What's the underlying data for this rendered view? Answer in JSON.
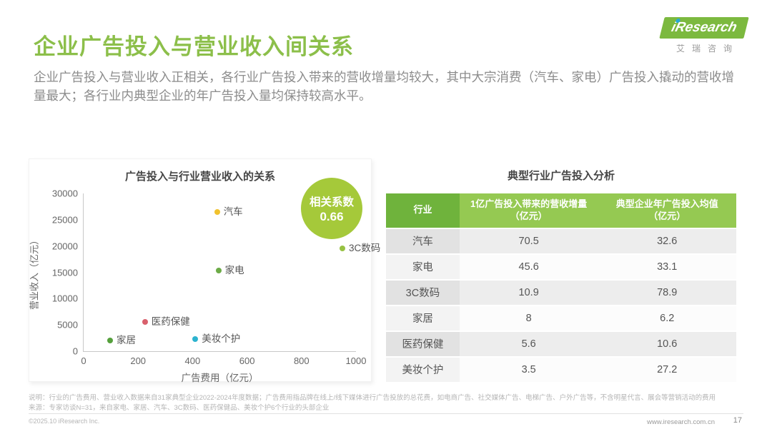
{
  "page": {
    "title": "企业广告投入与营业收入间关系",
    "subtitle": "企业广告投入与营业收入正相关，各行业广告投入带来的营收增量均较大，其中大宗消费（汽车、家电）广告投入撬动的营收增量最大；各行业内典型企业的年广告投入量均保持较高水平。",
    "note_line1": "说明：行业的广告费用、营业收入数据来自31家典型企业2022-2024年度数据；广告费用指品牌在线上/线下媒体进行广告投放的总花费，如电商广告、社交媒体广告、电梯广告、户外广告等，不含明星代言、展会等营销活动的费用",
    "note_line2": "来源：专家访谈N=31，来自家电、家居、汽车、3C数码、医药保健品、美妆个护6个行业的头部企业",
    "copyright": "©2025.10 iResearch Inc.",
    "website": "www.iresearch.com.cn",
    "page_number": "17"
  },
  "logo": {
    "brand": "iResearch",
    "brand_cn": "艾瑞咨询"
  },
  "chart_data": [
    {
      "type": "scatter",
      "title": "广告投入与行业营业收入的关系",
      "xlabel": "广告费用（亿元）",
      "ylabel": "营业收入（亿元）",
      "xlim": [
        0,
        1000
      ],
      "ylim": [
        0,
        30000
      ],
      "x_ticks": [
        0,
        200,
        400,
        600,
        800,
        1000
      ],
      "y_ticks": [
        0,
        5000,
        10000,
        15000,
        20000,
        25000,
        30000
      ],
      "grid": false,
      "annotation": {
        "label": "相关系数",
        "value": "0.66",
        "color": "#a5c93a"
      },
      "points": [
        {
          "label": "汽车",
          "x": 490,
          "y": 26500,
          "color": "#f1c22e"
        },
        {
          "label": "3C数码",
          "x": 950,
          "y": 19500,
          "color": "#97c243"
        },
        {
          "label": "家电",
          "x": 495,
          "y": 15400,
          "color": "#6cab47"
        },
        {
          "label": "医药保健",
          "x": 225,
          "y": 5600,
          "color": "#d9606c"
        },
        {
          "label": "美妆个护",
          "x": 410,
          "y": 2300,
          "color": "#2cb3cf"
        },
        {
          "label": "家居",
          "x": 97,
          "y": 2000,
          "color": "#55a03c"
        }
      ]
    },
    {
      "type": "table",
      "title": "典型行业广告投入分析",
      "columns": [
        "行业",
        "1亿广告投入带来的营收增量\n（亿元）",
        "典型企业年广告投入均值\n（亿元）"
      ],
      "rows": [
        [
          "汽车",
          "70.5",
          "32.6"
        ],
        [
          "家电",
          "45.6",
          "33.1"
        ],
        [
          "3C数码",
          "10.9",
          "78.9"
        ],
        [
          "家居",
          "8",
          "6.2"
        ],
        [
          "医药保健",
          "5.6",
          "10.6"
        ],
        [
          "美妆个护",
          "3.5",
          "27.2"
        ]
      ]
    }
  ]
}
